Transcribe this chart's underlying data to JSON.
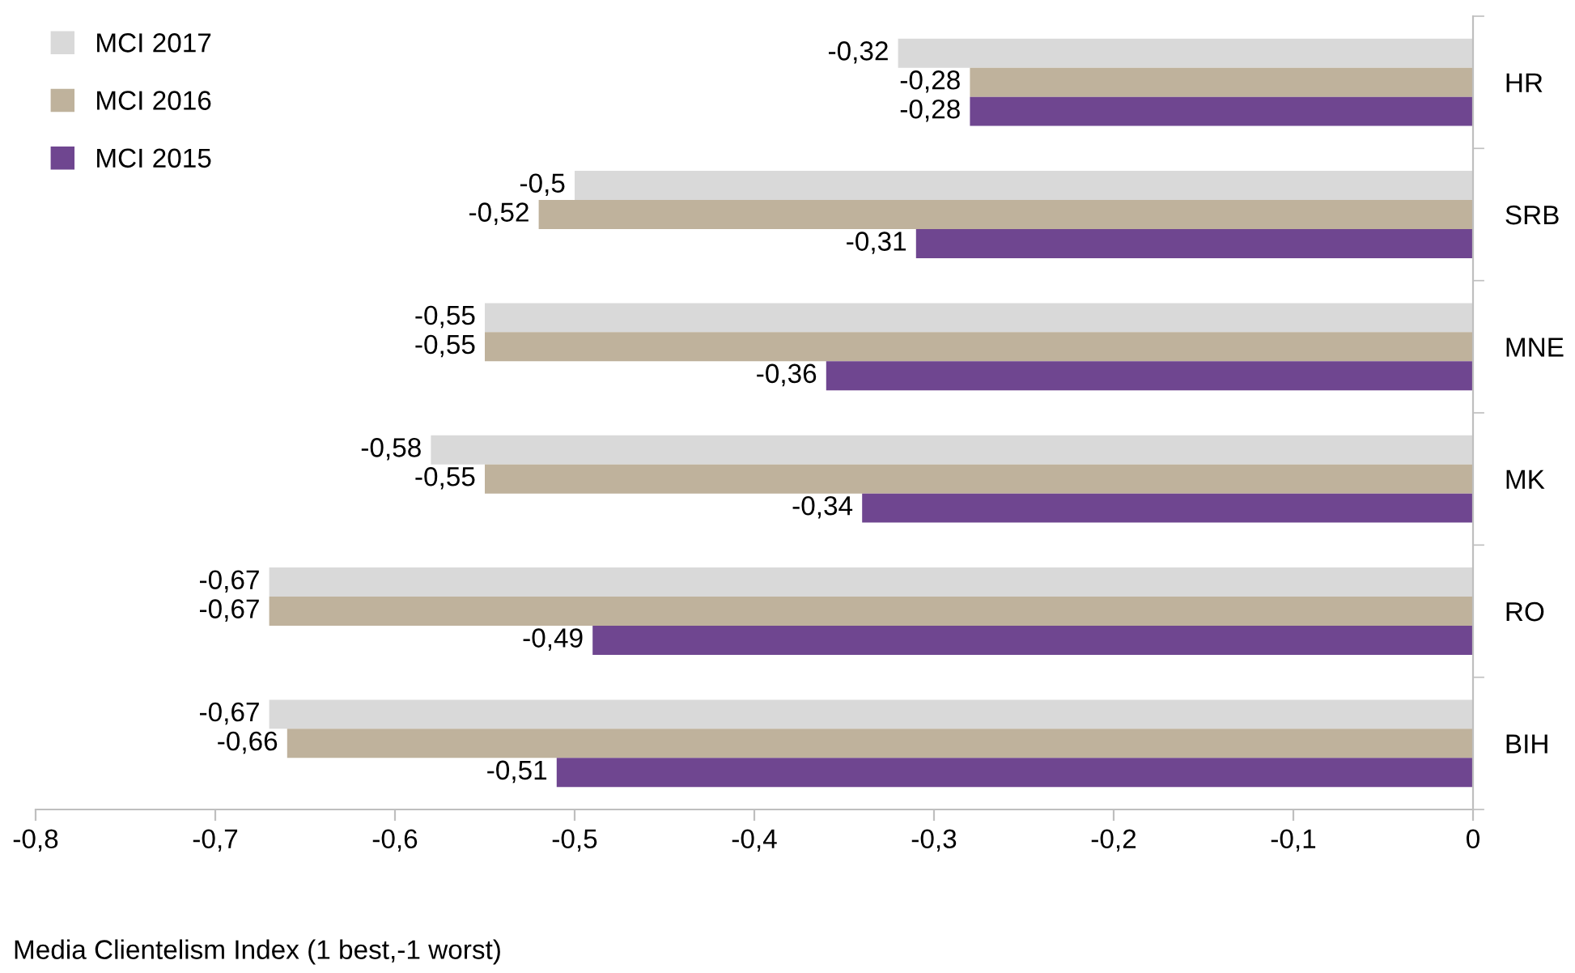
{
  "chart_data": {
    "type": "bar",
    "orientation": "horizontal",
    "categories": [
      "HR",
      "SRB",
      "MNE",
      "MK",
      "RO",
      "BIH"
    ],
    "series": [
      {
        "name": "MCI 2017",
        "color": "#d9d9d9",
        "values": [
          -0.32,
          -0.5,
          -0.55,
          -0.58,
          -0.67,
          -0.67
        ],
        "value_labels": [
          "-0,32",
          "-0,5",
          "-0,55",
          "-0,58",
          "-0,67",
          "-0,67"
        ]
      },
      {
        "name": "MCI 2016",
        "color": "#bfb29c",
        "values": [
          -0.28,
          -0.52,
          -0.55,
          -0.55,
          -0.67,
          -0.66
        ],
        "value_labels": [
          "-0,28",
          "-0,52",
          "-0,55",
          "-0,55",
          "-0,67",
          "-0,66"
        ]
      },
      {
        "name": "MCI 2015",
        "color": "#6f4690",
        "values": [
          -0.28,
          -0.31,
          -0.36,
          -0.34,
          -0.49,
          -0.51
        ],
        "value_labels": [
          "-0,28",
          "-0,31",
          "-0,36",
          "-0,34",
          "-0,49",
          "-0,51"
        ]
      }
    ],
    "xlim": [
      -0.8,
      0
    ],
    "xticks": [
      {
        "value": -0.8,
        "label": "-0,8"
      },
      {
        "value": -0.7,
        "label": "-0,7"
      },
      {
        "value": -0.6,
        "label": "-0,6"
      },
      {
        "value": -0.5,
        "label": "-0,5"
      },
      {
        "value": -0.4,
        "label": "-0,4"
      },
      {
        "value": -0.3,
        "label": "-0,3"
      },
      {
        "value": -0.2,
        "label": "-0,2"
      },
      {
        "value": -0.1,
        "label": "-0,1"
      },
      {
        "value": 0,
        "label": "0"
      }
    ],
    "xlabel": "Media Clientelism Index (1 best,-1 worst)",
    "legend": "top left",
    "grid": false
  }
}
